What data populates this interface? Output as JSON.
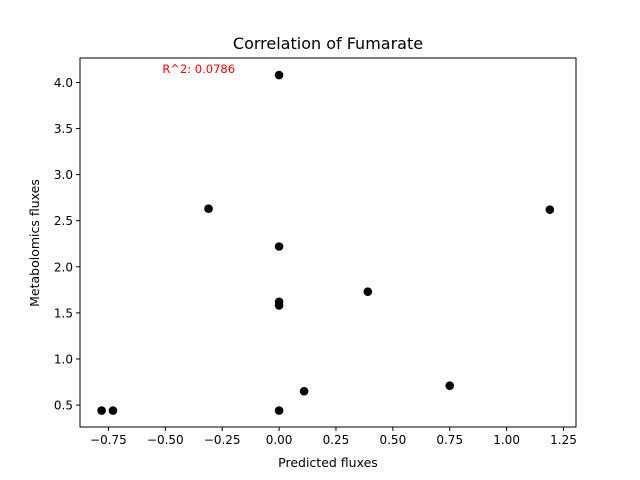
{
  "chart_data": {
    "type": "scatter",
    "title": "Correlation of Fumarate",
    "xlabel": "Predicted fluxes",
    "ylabel": "Metabolomics fluxes",
    "xlim": [
      -0.875,
      1.305
    ],
    "ylim": [
      0.262,
      4.265
    ],
    "xticks": [
      "−0.75",
      "−0.50",
      "−0.25",
      "0.00",
      "0.25",
      "0.50",
      "0.75",
      "1.00",
      "1.25"
    ],
    "xtick_values": [
      -0.75,
      -0.5,
      -0.25,
      0.0,
      0.25,
      0.5,
      0.75,
      1.0,
      1.25
    ],
    "yticks": [
      "0.5",
      "1.0",
      "1.5",
      "2.0",
      "2.5",
      "3.0",
      "3.5",
      "4.0"
    ],
    "ytick_values": [
      0.5,
      1.0,
      1.5,
      2.0,
      2.5,
      3.0,
      3.5,
      4.0
    ],
    "grid": false,
    "annotation": {
      "text": "R^2: 0.0786",
      "color": "#ff0000",
      "x": -0.5,
      "y": 4.1
    },
    "marker_color": "#000000",
    "points": [
      {
        "x": 0.0,
        "y": 4.08
      },
      {
        "x": -0.31,
        "y": 2.63
      },
      {
        "x": 1.19,
        "y": 2.62
      },
      {
        "x": 0.0,
        "y": 2.22
      },
      {
        "x": 0.39,
        "y": 1.73
      },
      {
        "x": 0.0,
        "y": 1.62
      },
      {
        "x": 0.0,
        "y": 1.58
      },
      {
        "x": 0.75,
        "y": 0.71
      },
      {
        "x": 0.11,
        "y": 0.65
      },
      {
        "x": -0.78,
        "y": 0.44
      },
      {
        "x": -0.73,
        "y": 0.44
      },
      {
        "x": 0.0,
        "y": 0.44
      }
    ]
  }
}
